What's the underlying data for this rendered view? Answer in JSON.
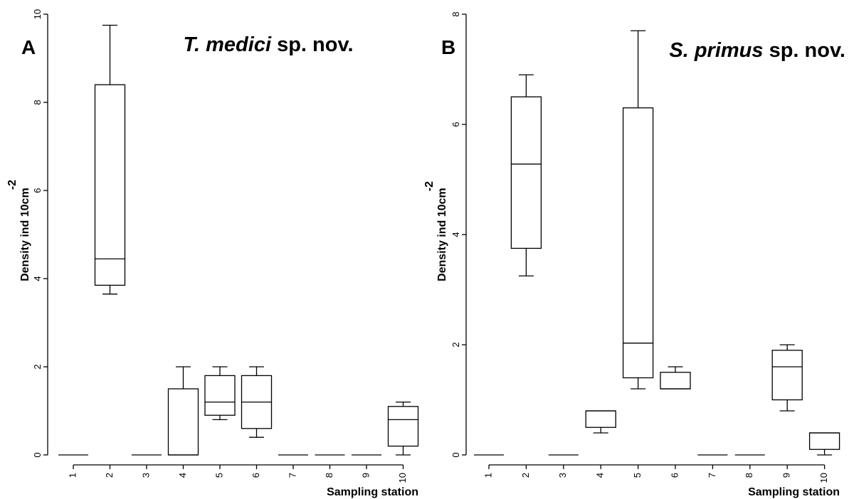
{
  "chart_data": [
    {
      "type": "box",
      "panel_label": "A",
      "title_italic": "T. medici",
      "title_rest": " sp. nov.",
      "ylabel": "Density ind 10cm",
      "ylabel_superscript": "-2",
      "xlabel": "Sampling station",
      "ylim": [
        0,
        10
      ],
      "yticks": [
        "0",
        "2",
        "4",
        "6",
        "8",
        "10"
      ],
      "categories": [
        "1",
        "2",
        "3",
        "4",
        "5",
        "6",
        "7",
        "8",
        "9",
        "10"
      ],
      "boxes": [
        {
          "min": 0,
          "q1": 0,
          "median": 0,
          "q3": 0,
          "max": 0
        },
        {
          "min": 3.65,
          "q1": 3.85,
          "median": 4.45,
          "q3": 8.4,
          "max": 9.75
        },
        {
          "min": 0,
          "q1": 0,
          "median": 0,
          "q3": 0,
          "max": 0
        },
        {
          "min": 0,
          "q1": 0,
          "median": 0,
          "q3": 1.5,
          "max": 2.0
        },
        {
          "min": 0.8,
          "q1": 0.9,
          "median": 1.2,
          "q3": 1.8,
          "max": 2.0
        },
        {
          "min": 0.4,
          "q1": 0.6,
          "median": 1.2,
          "q3": 1.8,
          "max": 2.0
        },
        {
          "min": 0,
          "q1": 0,
          "median": 0,
          "q3": 0,
          "max": 0
        },
        {
          "min": 0,
          "q1": 0,
          "median": 0,
          "q3": 0,
          "max": 0
        },
        {
          "min": 0,
          "q1": 0,
          "median": 0,
          "q3": 0,
          "max": 0
        },
        {
          "min": 0,
          "q1": 0.2,
          "median": 0.8,
          "q3": 1.1,
          "max": 1.2
        }
      ]
    },
    {
      "type": "box",
      "panel_label": "B",
      "title_italic": "S. primus",
      "title_rest": " sp. nov.",
      "ylabel": "Density ind 10cm",
      "ylabel_superscript": "-2",
      "xlabel": "Sampling station",
      "ylim": [
        0,
        8
      ],
      "yticks": [
        "0",
        "2",
        "4",
        "6",
        "8"
      ],
      "categories": [
        "1",
        "2",
        "3",
        "4",
        "5",
        "6",
        "7",
        "8",
        "9",
        "10"
      ],
      "boxes": [
        {
          "min": 0,
          "q1": 0,
          "median": 0,
          "q3": 0,
          "max": 0
        },
        {
          "min": 3.25,
          "q1": 3.75,
          "median": 5.28,
          "q3": 6.5,
          "max": 6.9
        },
        {
          "min": 0,
          "q1": 0,
          "median": 0,
          "q3": 0,
          "max": 0
        },
        {
          "min": 0.4,
          "q1": 0.5,
          "median": 0.8,
          "q3": 0.8,
          "max": 0.8
        },
        {
          "min": 1.2,
          "q1": 1.4,
          "median": 2.03,
          "q3": 6.3,
          "max": 7.7
        },
        {
          "min": 1.2,
          "q1": 1.2,
          "median": 1.2,
          "q3": 1.5,
          "max": 1.6
        },
        {
          "min": 0,
          "q1": 0,
          "median": 0,
          "q3": 0,
          "max": 0
        },
        {
          "min": 0,
          "q1": 0,
          "median": 0,
          "q3": 0,
          "max": 0
        },
        {
          "min": 0.8,
          "q1": 1.0,
          "median": 1.6,
          "q3": 1.9,
          "max": 2.0
        },
        {
          "min": 0,
          "q1": 0.1,
          "median": 0.4,
          "q3": 0.4,
          "max": 0.4
        }
      ]
    }
  ]
}
